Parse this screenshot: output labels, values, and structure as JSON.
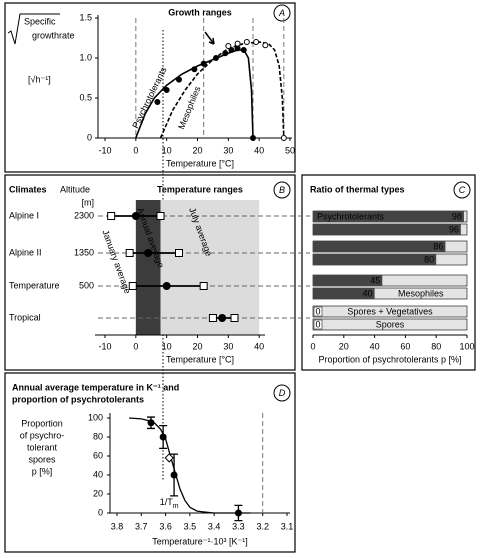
{
  "chart_data": [
    {
      "type": "line",
      "panel": "A",
      "title": "Growth ranges",
      "ylabel": [
        "Specific",
        "growthrate"
      ],
      "ylabel_unit": "[√h⁻¹]",
      "xlabel": "Temperature [°C]",
      "xlim": [
        -10,
        50
      ],
      "xticks": [
        -10,
        0,
        10,
        20,
        30,
        40,
        50
      ],
      "ylim": [
        0,
        1.5
      ],
      "yticks": [
        0,
        0.5,
        {
          "value": 1,
          "label": "1.0"
        },
        1.5
      ],
      "reference_lines": [
        0,
        22,
        38,
        48
      ],
      "series": [
        {
          "name": "Psychrotolerants",
          "color": "#000000",
          "dashed": false,
          "marker": "filled",
          "curve_x": [
            0,
            3,
            6,
            10,
            15,
            20,
            25,
            30,
            33,
            35,
            36.5,
            37.5,
            38
          ],
          "curve_y": [
            0,
            0.3,
            0.5,
            0.66,
            0.8,
            0.9,
            0.98,
            1.06,
            1.1,
            1.1,
            1.0,
            0.6,
            0
          ],
          "points_x": [
            7,
            10,
            14,
            19,
            22,
            26,
            29,
            31,
            33,
            35,
            38
          ],
          "points_y": [
            0.45,
            0.6,
            0.73,
            0.86,
            0.93,
            1.0,
            1.06,
            1.1,
            1.12,
            1.1,
            0
          ]
        },
        {
          "name": "Mesophiles",
          "color": "#000000",
          "dashed": true,
          "marker": "open",
          "curve_x": [
            8,
            12,
            16,
            20,
            25,
            30,
            35,
            40,
            43,
            45,
            46.5,
            47.5,
            48
          ],
          "curve_y": [
            0,
            0.35,
            0.6,
            0.8,
            0.98,
            1.12,
            1.18,
            1.2,
            1.18,
            1.1,
            0.9,
            0.5,
            0
          ],
          "points_x": [
            30,
            33,
            36,
            39,
            42,
            48
          ],
          "points_y": [
            1.15,
            1.18,
            1.2,
            1.2,
            1.16,
            0
          ]
        }
      ]
    },
    {
      "type": "range",
      "panel": "B",
      "title": "Temperature ranges",
      "row_header": "Climates",
      "altitude_header": "Altitude",
      "altitude_unit": "[m]",
      "categories": [
        "Alpine I",
        "Alpine II",
        "Temperature",
        "Tropical"
      ],
      "altitudes": [
        2300,
        1350,
        500,
        null
      ],
      "xlabel": "Temperature [°C]",
      "xlim": [
        -10,
        50
      ],
      "xticks": [
        -10,
        0,
        10,
        20,
        30,
        40
      ],
      "shaded_ranges": [
        {
          "from": 0,
          "to": 8,
          "color": "#3c3c3c"
        },
        {
          "from": 8,
          "to": 40,
          "color": "#dcdcdc"
        }
      ],
      "series": [
        {
          "name": "January average",
          "marker": "square",
          "values": [
            -8,
            -2,
            -1,
            25
          ]
        },
        {
          "name": "Annual average",
          "marker": "dot",
          "values": [
            0,
            4,
            10,
            28
          ]
        },
        {
          "name": "July average",
          "marker": "square",
          "values": [
            8,
            14,
            22,
            32
          ]
        }
      ]
    },
    {
      "type": "hbar",
      "panel": "C",
      "title": "Ratio of thermal types",
      "xlabel": "Proportion of psychrotolerants p [%]",
      "xlim": [
        0,
        100
      ],
      "xticks": [
        0,
        20,
        40,
        60,
        80,
        100
      ],
      "values": [
        98,
        96,
        86,
        80,
        45,
        40,
        0,
        0
      ],
      "bar_labels": [
        "Psychrotolerants",
        null,
        null,
        null,
        null,
        "Mesophiles",
        "Spores + Vegetatives",
        "Spores"
      ],
      "color": "#444444",
      "background_color": "#e4e4e4"
    },
    {
      "type": "scatter",
      "panel": "D",
      "title": [
        "Annual average temperature in K⁻¹ and",
        "proportion of psychrotolerants"
      ],
      "ylabel": [
        "Proportion",
        "of psychro-",
        "tolerant",
        "spores",
        "p [%]"
      ],
      "xlabel": "Temperature⁻¹·10³ [K⁻¹]",
      "xlim": [
        3.8,
        3.1
      ],
      "xticks": [
        3.8,
        3.7,
        3.6,
        3.5,
        3.4,
        3.3,
        3.2,
        3.1
      ],
      "ylim": [
        0,
        100
      ],
      "yticks": [
        0,
        20,
        40,
        60,
        80,
        100
      ],
      "x": [
        3.66,
        3.61,
        3.565,
        3.3
      ],
      "values": [
        95,
        80,
        40,
        0
      ],
      "errors": [
        6,
        12,
        22,
        8
      ],
      "fit": {
        "x": [
          3.75,
          3.7,
          3.65,
          3.62,
          3.6,
          3.58,
          3.56,
          3.54,
          3.52,
          3.5,
          3.47,
          3.44,
          3.4,
          3.35,
          3.3,
          3.25
        ],
        "y": [
          100,
          99,
          96,
          88,
          78,
          60,
          42,
          25,
          13,
          6,
          2,
          1,
          0,
          0,
          0,
          0
        ]
      },
      "annotation": {
        "label": "1/T",
        "label_sub": "m",
        "x": 3.585,
        "y": 58
      }
    }
  ]
}
